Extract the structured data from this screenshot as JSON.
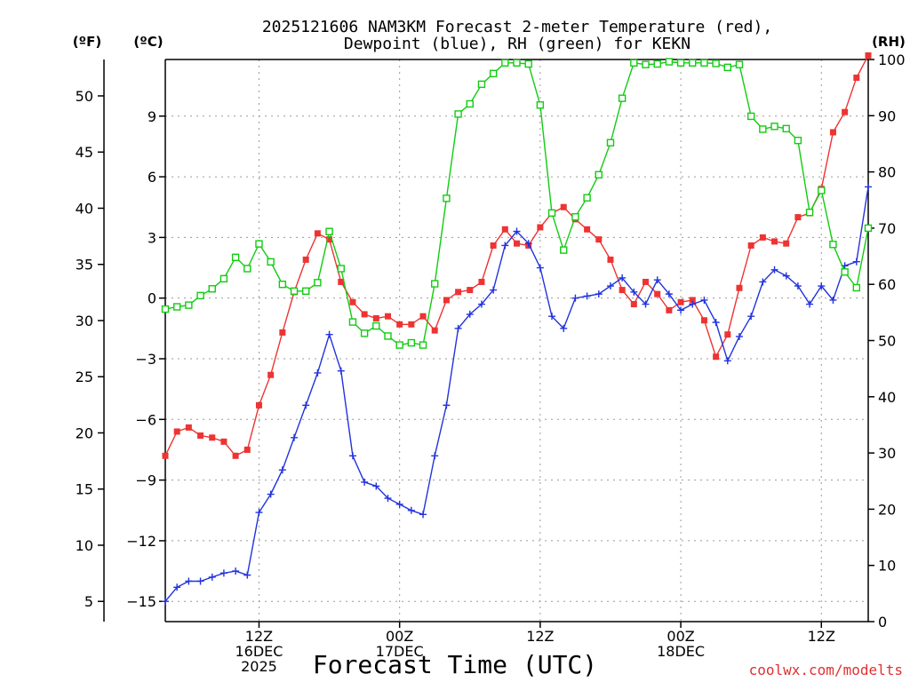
{
  "title_line1": "2025121606 NAM3KM Forecast 2-meter Temperature (red),",
  "title_line2": "Dewpoint (blue), RH (green) for KEKN",
  "units": {
    "fahrenheit": "(ºF)",
    "celsius": "(ºC)",
    "rh": "(RH)"
  },
  "x_axis_title": "Forecast Time (UTC)",
  "credit": "coolwx.com/modelts",
  "colors": {
    "temperature": "#ee3333",
    "dewpoint": "#2233dd",
    "rh": "#11cc11",
    "axis": "#000000"
  },
  "chart_data": {
    "type": "line",
    "x_unit": "hours after 2025-12-16 06Z (forecast hours)",
    "xlim": [
      0,
      45
    ],
    "ylim_celsius": [
      -16.0,
      11.8
    ],
    "ylim_rh": [
      0,
      100
    ],
    "celsius_ticks": [
      "-15",
      "-12",
      "-9",
      "-6",
      "-3",
      "0",
      "3",
      "6",
      "9"
    ],
    "fahrenheit_ticks": [
      "5",
      "10",
      "15",
      "20",
      "25",
      "30",
      "35",
      "40",
      "45",
      "50"
    ],
    "rh_ticks": [
      "0",
      "10",
      "20",
      "30",
      "40",
      "50",
      "60",
      "70",
      "80",
      "90",
      "100"
    ],
    "x_ticks": [
      {
        "hour": 6,
        "lines": [
          "12Z",
          "16DEC",
          "2025"
        ]
      },
      {
        "hour": 15,
        "lines": [
          "00Z",
          "17DEC"
        ]
      },
      {
        "hour": 24,
        "lines": [
          "12Z"
        ]
      },
      {
        "hour": 33,
        "lines": [
          "00Z",
          "18DEC"
        ]
      },
      {
        "hour": 42,
        "lines": [
          "12Z"
        ]
      }
    ],
    "series": [
      {
        "name": "2-meter Temperature",
        "unit": "°C",
        "color": "#ee3333",
        "marker": "filled-square",
        "x": [
          0,
          0.75,
          1.5,
          2.25,
          3,
          3.75,
          4.5,
          5.25,
          6,
          6.75,
          7.5,
          8.25,
          9,
          9.75,
          10.5,
          11.25,
          12,
          12.75,
          13.5,
          14.25,
          15,
          15.75,
          16.5,
          17.25,
          18,
          18.75,
          19.5,
          20.25,
          21,
          21.75,
          22.5,
          23.25,
          24,
          24.75,
          25.5,
          26.25,
          27,
          27.75,
          28.5,
          29.25,
          30,
          30.75,
          31.5,
          32.25,
          33,
          33.75,
          34.5,
          35.25,
          36,
          36.75,
          37.5,
          38.25,
          39,
          39.75,
          40.5,
          41.25,
          42,
          42.75,
          43.5,
          44.25,
          45
        ],
        "values": [
          -7.8,
          -6.6,
          -6.4,
          -6.8,
          -6.9,
          -7.1,
          -7.8,
          -7.5,
          -5.3,
          -3.8,
          -1.7,
          0.3,
          1.9,
          3.2,
          2.9,
          0.8,
          -0.2,
          -0.8,
          -1.0,
          -0.9,
          -1.3,
          -1.3,
          -0.9,
          -1.6,
          -0.1,
          0.3,
          0.4,
          0.8,
          2.6,
          3.4,
          2.7,
          2.6,
          3.5,
          4.2,
          4.5,
          3.9,
          3.4,
          2.9,
          1.9,
          0.4,
          -0.3,
          0.8,
          0.2,
          -0.6,
          -0.2,
          -0.1,
          -1.1,
          -2.9,
          -1.8,
          0.5,
          2.6,
          3.0,
          2.8,
          2.7,
          4.0,
          4.2,
          5.4,
          8.2,
          9.2,
          10.9,
          12.0
        ]
      },
      {
        "name": "Dewpoint",
        "unit": "°C",
        "color": "#2233dd",
        "marker": "plus",
        "x": [
          0,
          0.75,
          1.5,
          2.25,
          3,
          3.75,
          4.5,
          5.25,
          6,
          6.75,
          7.5,
          8.25,
          9,
          9.75,
          10.5,
          11.25,
          12,
          12.75,
          13.5,
          14.25,
          15,
          15.75,
          16.5,
          17.25,
          18,
          18.75,
          19.5,
          20.25,
          21,
          21.75,
          22.5,
          23.25,
          24,
          24.75,
          25.5,
          26.25,
          27,
          27.75,
          28.5,
          29.25,
          30,
          30.75,
          31.5,
          32.25,
          33,
          33.75,
          34.5,
          35.25,
          36,
          36.75,
          37.5,
          38.25,
          39,
          39.75,
          40.5,
          41.25,
          42,
          42.75,
          43.5,
          44.25,
          45
        ],
        "values": [
          -15.0,
          -14.3,
          -14.0,
          -14.0,
          -13.8,
          -13.6,
          -13.5,
          -13.7,
          -10.6,
          -9.7,
          -8.5,
          -6.9,
          -5.3,
          -3.7,
          -1.8,
          -3.6,
          -7.8,
          -9.1,
          -9.3,
          -9.9,
          -10.2,
          -10.5,
          -10.7,
          -7.8,
          -5.3,
          -1.5,
          -0.8,
          -0.3,
          0.4,
          2.6,
          3.3,
          2.7,
          1.5,
          -0.9,
          -1.5,
          0.0,
          0.1,
          0.2,
          0.6,
          1.0,
          0.3,
          -0.3,
          0.9,
          0.2,
          -0.6,
          -0.3,
          -0.1,
          -1.2,
          -3.1,
          -1.9,
          -0.9,
          0.8,
          1.4,
          1.1,
          0.6,
          -0.3,
          0.6,
          -0.1,
          1.6,
          1.8,
          5.5
        ]
      },
      {
        "name": "RH",
        "unit": "%",
        "color": "#11cc11",
        "marker": "open-square",
        "x": [
          0,
          0.75,
          1.5,
          2.25,
          3,
          3.75,
          4.5,
          5.25,
          6,
          6.75,
          7.5,
          8.25,
          9,
          9.75,
          10.5,
          11.25,
          12,
          12.75,
          13.5,
          14.25,
          15,
          15.75,
          16.5,
          17.25,
          18,
          18.75,
          19.5,
          20.25,
          21,
          21.75,
          22.5,
          23.25,
          24,
          24.75,
          25.5,
          26.25,
          27,
          27.75,
          28.5,
          29.25,
          30,
          30.75,
          31.5,
          32.25,
          33,
          33.75,
          34.5,
          35.25,
          36,
          36.75,
          37.5,
          38.25,
          39,
          39.75,
          40.5,
          41.25,
          42,
          42.75,
          43.5,
          44.25,
          45
        ],
        "values": [
          55.6,
          56,
          56.3,
          58,
          59.2,
          61,
          64.8,
          62.8,
          67.2,
          64,
          60,
          58.8,
          58.8,
          60.3,
          69.4,
          62.8,
          53.3,
          51.3,
          52.6,
          50.8,
          49.2,
          49.6,
          49.2,
          60.1,
          75.3,
          90.3,
          92.1,
          95.6,
          97.5,
          99.4,
          99.4,
          99.2,
          91.9,
          72.7,
          66.1,
          72,
          75.4,
          79.5,
          85.2,
          93.1,
          99.4,
          99.1,
          99.2,
          99.6,
          99.4,
          99.4,
          99.4,
          99.3,
          98.6,
          99.1,
          89.9,
          87.6,
          88.1,
          87.7,
          85.6,
          72.8,
          76.7,
          67.1,
          62.2,
          59.4,
          70
        ]
      }
    ]
  }
}
